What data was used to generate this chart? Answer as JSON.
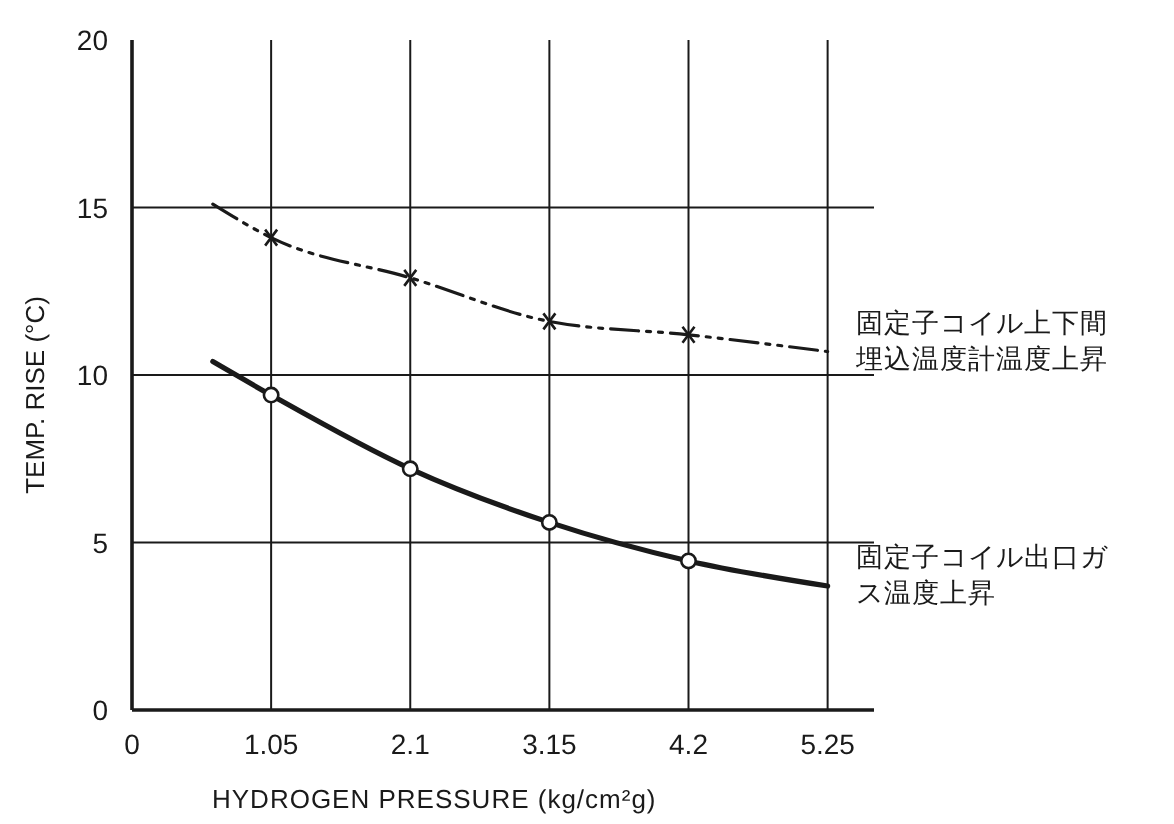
{
  "chart_data": {
    "type": "line",
    "xlabel": "HYDROGEN PRESSURE (kg/cm²g)",
    "ylabel": "TEMP. RISE (°C)",
    "xlim": [
      0,
      5.6
    ],
    "xticks": [
      0,
      1.05,
      2.1,
      3.15,
      4.2,
      5.25
    ],
    "ylim": [
      0,
      20
    ],
    "yticks": [
      0,
      5,
      10,
      15,
      20
    ],
    "grid": true,
    "series": [
      {
        "name": "固定子コイル上下間埋込温度計温度上昇",
        "line_style": "dashed",
        "marker": "none",
        "color": "#1a1a1a",
        "x": [
          0.61,
          1.05,
          2.1,
          3.15,
          4.2,
          5.25
        ],
        "values": [
          15.1,
          14.1,
          12.9,
          11.6,
          11.2,
          10.7
        ]
      },
      {
        "name": "固定子コイル出口ガス温度上昇",
        "line_style": "solid",
        "marker": "none",
        "color": "#1a1a1a",
        "x": [
          0.61,
          1.05,
          2.1,
          3.15,
          4.2,
          5.25
        ],
        "values": [
          10.4,
          9.4,
          7.2,
          5.6,
          4.45,
          3.7
        ]
      },
      {
        "type": "scatter",
        "marker": "cross",
        "color": "#1a1a1a",
        "x": [
          1.05,
          2.1,
          3.15,
          4.2
        ],
        "values": [
          14.1,
          12.9,
          11.6,
          11.2
        ]
      },
      {
        "type": "scatter",
        "marker": "circle",
        "color": "#1a1a1a",
        "x": [
          1.05,
          2.1,
          3.15,
          4.2
        ],
        "values": [
          9.4,
          7.2,
          5.6,
          4.45
        ]
      }
    ]
  }
}
